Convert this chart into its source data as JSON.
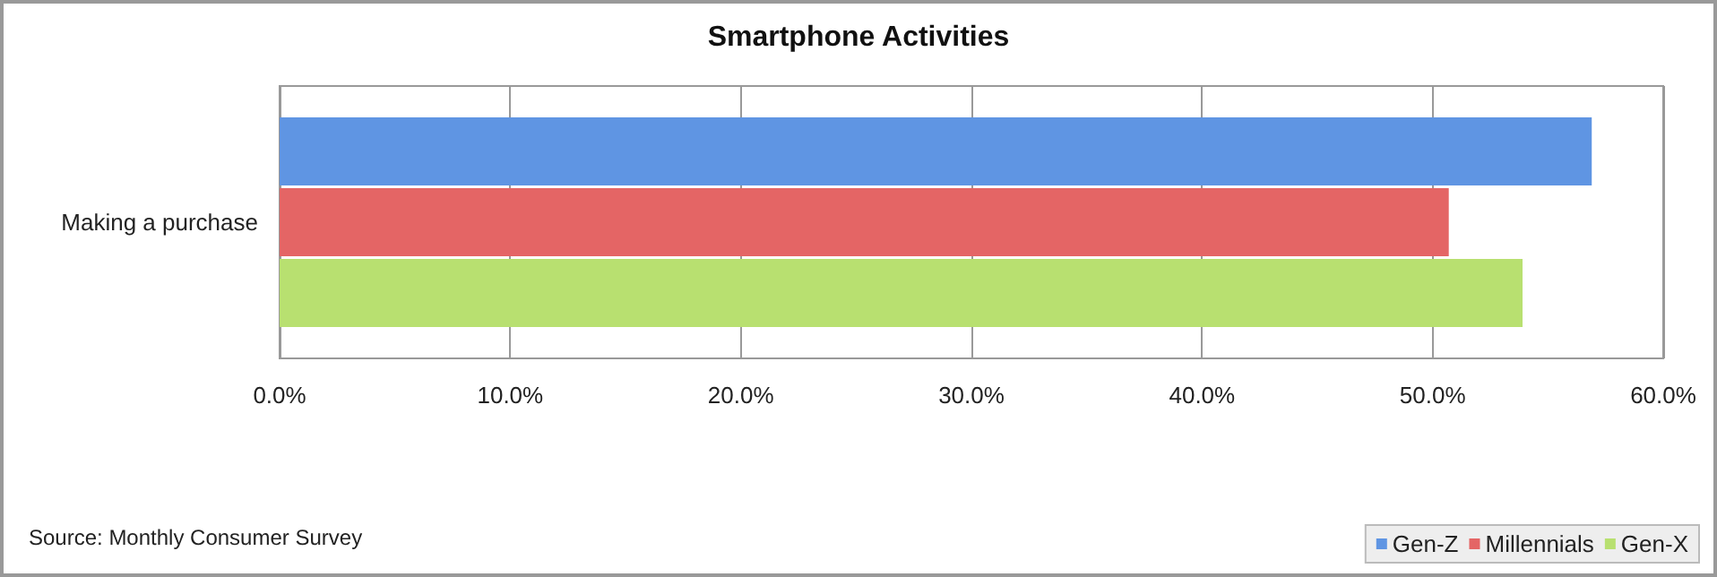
{
  "chart_data": {
    "type": "bar",
    "orientation": "horizontal",
    "title": "Smartphone Activities",
    "categories": [
      "Making a purchase"
    ],
    "series": [
      {
        "name": "Gen-Z",
        "color": "#5f95e3",
        "values": [
          56.9
        ]
      },
      {
        "name": "Millennials",
        "color": "#e46565",
        "values": [
          50.7
        ]
      },
      {
        "name": "Gen-X",
        "color": "#b8e070",
        "values": [
          53.9
        ]
      }
    ],
    "xlim": [
      0,
      60
    ],
    "xticks": [
      {
        "value": 0,
        "label": "0.0%"
      },
      {
        "value": 10,
        "label": "10.0%"
      },
      {
        "value": 20,
        "label": "20.0%"
      },
      {
        "value": 30,
        "label": "30.0%"
      },
      {
        "value": 40,
        "label": "40.0%"
      },
      {
        "value": 50,
        "label": "50.0%"
      },
      {
        "value": 60,
        "label": "60.0%"
      }
    ],
    "grid": "x",
    "legend": "bottom right",
    "annotations": [
      "Source: Monthly Consumer Survey"
    ]
  }
}
